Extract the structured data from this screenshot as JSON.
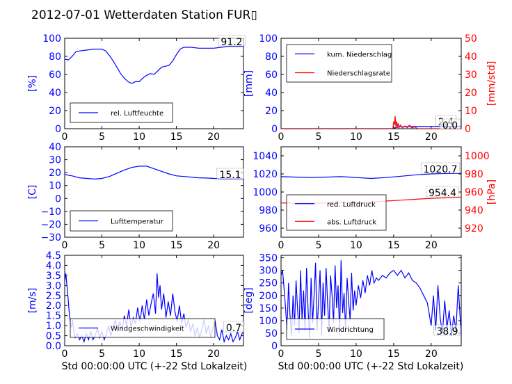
{
  "title": "2012-07-01 Wetterdaten Station FUR▯",
  "xlabel": "Std 00:00:00 UTC (+-22 Std Lokalzeit)",
  "colors": {
    "blue": "#0000ff",
    "red": "#ff0000",
    "black": "#000000"
  },
  "chart_data": [
    {
      "type": "line",
      "ylabel": "[%]",
      "xlim": [
        0,
        24
      ],
      "ylim": [
        0,
        100
      ],
      "xticks": [
        "0",
        "5",
        "10",
        "15",
        "20"
      ],
      "yticks": [
        "0",
        "20",
        "40",
        "60",
        "80",
        "100"
      ],
      "series": [
        {
          "name": "rel. Luftfeuchte",
          "color": "#0000ff",
          "x": [
            0,
            0.5,
            1,
            1.5,
            2,
            3,
            4,
            5,
            5.5,
            6,
            6.5,
            7,
            7.5,
            8,
            8.5,
            9,
            9.5,
            10,
            10.5,
            11,
            11.5,
            12,
            12.5,
            13,
            13.5,
            14,
            14.5,
            15,
            15.5,
            16,
            17,
            18,
            19,
            20,
            21,
            22,
            23,
            24
          ],
          "y": [
            77,
            76,
            80,
            85,
            86,
            87,
            88,
            88,
            86,
            81,
            75,
            68,
            61,
            56,
            52,
            50,
            52,
            52,
            56,
            59,
            61,
            60,
            64,
            68,
            69,
            70,
            75,
            82,
            88,
            90,
            90,
            89,
            89,
            89,
            90,
            91,
            91,
            91
          ]
        }
      ],
      "annotation": "91.2",
      "legend_position": "lower-left"
    },
    {
      "type": "line",
      "ylabel": "[mm]",
      "ylabel_right": "[mm/std]",
      "xlim": [
        0,
        24
      ],
      "ylim": [
        0,
        100
      ],
      "ylim_right": [
        0,
        50
      ],
      "xticks": [
        "0",
        "5",
        "10",
        "15",
        "20"
      ],
      "yticks": [
        "0",
        "20",
        "40",
        "60",
        "80",
        "100"
      ],
      "yticks_right": [
        "0",
        "10",
        "20",
        "30",
        "40",
        "50"
      ],
      "series": [
        {
          "name": "kum. Niederschlag",
          "color": "#0000ff",
          "axis": "left",
          "x": [
            0,
            14.8,
            15.0,
            15.3,
            15.6,
            16.0,
            17.0,
            18.0,
            24
          ],
          "y": [
            0,
            0,
            0.5,
            1.2,
            1.8,
            2.1,
            2.3,
            2.4,
            2.4
          ]
        },
        {
          "name": "Niederschlagsrate",
          "color": "#ff0000",
          "axis": "right",
          "x": [
            0,
            14.9,
            15.0,
            15.1,
            15.2,
            15.3,
            15.4,
            15.5,
            15.6,
            15.7,
            15.9,
            16.2,
            16.5,
            16.8,
            17.1,
            17.4,
            17.8,
            18.2,
            24
          ],
          "y": [
            0,
            0,
            4,
            2,
            7,
            1,
            4,
            1,
            3,
            0.5,
            2,
            0.5,
            1.5,
            0.5,
            2,
            0.5,
            1,
            0,
            0
          ]
        }
      ],
      "annotations": [
        "2.4",
        "0.0"
      ],
      "legend_position": "upper-left"
    },
    {
      "type": "line",
      "ylabel": "[C]",
      "xlim": [
        0,
        24
      ],
      "ylim": [
        -30,
        40
      ],
      "xticks": [
        "0",
        "5",
        "10",
        "15",
        "20"
      ],
      "yticks": [
        "−30",
        "−20",
        "−10",
        "0",
        "10",
        "20",
        "30",
        "40"
      ],
      "series": [
        {
          "name": "Lufttemperatur",
          "color": "#0000ff",
          "x": [
            0,
            1,
            2,
            3,
            4,
            5,
            6,
            7,
            8,
            9,
            10,
            11,
            12,
            13,
            14,
            15,
            16,
            17,
            18,
            19,
            20,
            21,
            22,
            23,
            24
          ],
          "y": [
            18.5,
            17.5,
            16,
            15.5,
            15,
            15.5,
            17,
            19.5,
            22,
            24,
            25,
            25,
            23,
            21,
            19,
            17.5,
            17,
            16.5,
            16,
            15.8,
            15.5,
            15.2,
            15.1,
            15.2,
            15.1
          ]
        }
      ],
      "annotation": "15.1",
      "legend_position": "lower-left"
    },
    {
      "type": "line",
      "ylabel_right": "[hPa]",
      "xlim": [
        0,
        24
      ],
      "ylim": [
        950,
        1050
      ],
      "ylim_right": [
        910,
        1010
      ],
      "xticks": [
        "0",
        "5",
        "10",
        "15",
        "20"
      ],
      "yticks": [
        "960",
        "980",
        "1000",
        "1020",
        "1040"
      ],
      "yticks_right": [
        "920",
        "940",
        "960",
        "980",
        "1000"
      ],
      "series": [
        {
          "name": "red. Luftdruck",
          "color": "#0000ff",
          "axis": "left",
          "x": [
            0,
            2,
            4,
            6,
            8,
            10,
            12,
            14,
            16,
            18,
            20,
            22,
            24
          ],
          "y": [
            1017,
            1016.5,
            1016,
            1016.5,
            1017,
            1016,
            1015,
            1016,
            1017.5,
            1019,
            1020,
            1020.5,
            1020.7
          ]
        },
        {
          "name": "abs. Luftdruck",
          "color": "#ff0000",
          "axis": "right",
          "x": [
            0,
            2,
            4,
            6,
            8,
            10,
            12,
            14,
            16,
            18,
            20,
            22,
            24
          ],
          "y": [
            948,
            947.5,
            947.5,
            948,
            948.5,
            948.5,
            949,
            950,
            951,
            952,
            953,
            953.5,
            954.4
          ]
        }
      ],
      "annotations": [
        "1020.7",
        "954.4"
      ],
      "legend_position": "lower-left"
    },
    {
      "type": "line",
      "ylabel": "[m/s]",
      "xlim": [
        0,
        24
      ],
      "ylim": [
        0,
        4.5
      ],
      "xticks": [
        "0",
        "5",
        "10",
        "15",
        "20"
      ],
      "yticks": [
        "0.0",
        "0.5",
        "1.0",
        "1.5",
        "2.0",
        "2.5",
        "3.0",
        "3.5",
        "4.0",
        "4.5"
      ],
      "series": [
        {
          "name": "Windgeschwindigkeit",
          "color": "#0000ff",
          "x": [
            0,
            0.15,
            0.3,
            0.45,
            0.6,
            0.75,
            0.9,
            1.05,
            1.2,
            1.4,
            1.7,
            2.0,
            2.3,
            2.6,
            2.9,
            3.2,
            3.5,
            3.8,
            4.1,
            4.4,
            4.7,
            5.0,
            5.3,
            5.6,
            5.9,
            6.2,
            6.5,
            6.8,
            7.1,
            7.4,
            7.7,
            8.0,
            8.3,
            8.6,
            8.9,
            9.2,
            9.5,
            9.8,
            10.1,
            10.4,
            10.7,
            11.0,
            11.3,
            11.6,
            11.9,
            12.2,
            12.4,
            12.6,
            12.8,
            13.0,
            13.3,
            13.6,
            13.9,
            14.2,
            14.5,
            14.8,
            15.1,
            15.4,
            15.7,
            16.0,
            16.3,
            16.6,
            16.9,
            17.2,
            17.5,
            17.8,
            18.1,
            18.4,
            18.7,
            19.0,
            19.3,
            19.6,
            19.9,
            20.2,
            20.5,
            20.8,
            21.1,
            21.4,
            21.7,
            22.0,
            22.3,
            22.6,
            22.9,
            23.2,
            23.5,
            23.8,
            24.0
          ],
          "y": [
            3.2,
            3.6,
            3.0,
            2.4,
            1.7,
            1.2,
            0.9,
            1.3,
            0.8,
            0.4,
            0.6,
            0.3,
            0.5,
            0.2,
            0.6,
            0.3,
            0.7,
            0.3,
            0.5,
            0.9,
            0.4,
            0.7,
            0.3,
            0.6,
            1.0,
            0.5,
            0.9,
            1.3,
            0.7,
            1.2,
            0.8,
            1.5,
            1.0,
            1.8,
            0.9,
            1.4,
            1.1,
            1.9,
            1.2,
            2.0,
            1.3,
            2.3,
            1.5,
            2.1,
            2.6,
            1.6,
            3.6,
            2.4,
            3.0,
            1.8,
            2.6,
            1.4,
            2.2,
            1.5,
            2.6,
            1.7,
            1.2,
            2.0,
            1.1,
            1.6,
            0.9,
            1.3,
            0.7,
            1.1,
            0.5,
            0.9,
            0.4,
            0.8,
            1.3,
            0.6,
            1.0,
            0.4,
            0.9,
            1.2,
            0.5,
            0.3,
            0.8,
            0.2,
            0.5,
            0.3,
            0.6,
            0.2,
            0.4,
            0.7,
            0.3,
            0.6,
            0.7
          ]
        }
      ],
      "annotation": "0.7",
      "legend_position": "lower-left"
    },
    {
      "type": "line",
      "ylabel": "[deg]",
      "xlim": [
        0,
        24
      ],
      "ylim": [
        0,
        360
      ],
      "xticks": [
        "0",
        "5",
        "10",
        "15",
        "20"
      ],
      "yticks": [
        "0",
        "50",
        "100",
        "150",
        "200",
        "250",
        "300",
        "350"
      ],
      "series": [
        {
          "name": "Windrichtung",
          "color": "#0000ff",
          "x": [
            0,
            0.2,
            0.4,
            0.6,
            0.8,
            1.0,
            1.2,
            1.4,
            1.6,
            1.8,
            2.0,
            2.2,
            2.4,
            2.6,
            2.8,
            3.0,
            3.2,
            3.4,
            3.6,
            3.8,
            4.0,
            4.2,
            4.4,
            4.6,
            4.8,
            5.0,
            5.2,
            5.4,
            5.6,
            5.8,
            6.0,
            6.2,
            6.4,
            6.6,
            6.8,
            7.0,
            7.2,
            7.4,
            7.6,
            7.8,
            8.0,
            8.2,
            8.4,
            8.6,
            8.8,
            9.0,
            9.2,
            9.4,
            9.6,
            9.8,
            10.0,
            10.3,
            10.6,
            10.9,
            11.2,
            11.5,
            11.8,
            12.1,
            12.4,
            12.7,
            13.0,
            13.5,
            14.0,
            14.5,
            15.0,
            15.5,
            16.0,
            16.5,
            17.0,
            17.5,
            18.0,
            18.5,
            19.0,
            19.5,
            20.0,
            20.3,
            20.6,
            20.9,
            21.2,
            21.5,
            21.8,
            22.1,
            22.4,
            22.7,
            23.0,
            23.3,
            23.6,
            24.0
          ],
          "y": [
            280,
            300,
            230,
            150,
            60,
            250,
            120,
            40,
            200,
            80,
            260,
            150,
            50,
            300,
            100,
            220,
            60,
            310,
            140,
            30,
            270,
            90,
            200,
            330,
            60,
            180,
            300,
            40,
            250,
            120,
            310,
            170,
            60,
            280,
            200,
            90,
            320,
            150,
            240,
            40,
            340,
            130,
            210,
            60,
            270,
            180,
            100,
            290,
            140,
            220,
            160,
            240,
            190,
            260,
            210,
            280,
            240,
            300,
            250,
            270,
            260,
            280,
            270,
            290,
            300,
            280,
            300,
            270,
            290,
            260,
            250,
            230,
            200,
            170,
            80,
            200,
            60,
            240,
            110,
            50,
            180,
            70,
            140,
            40,
            120,
            60,
            240,
            39
          ]
        }
      ],
      "annotation": "38.9",
      "legend_position": "lower-left"
    }
  ]
}
